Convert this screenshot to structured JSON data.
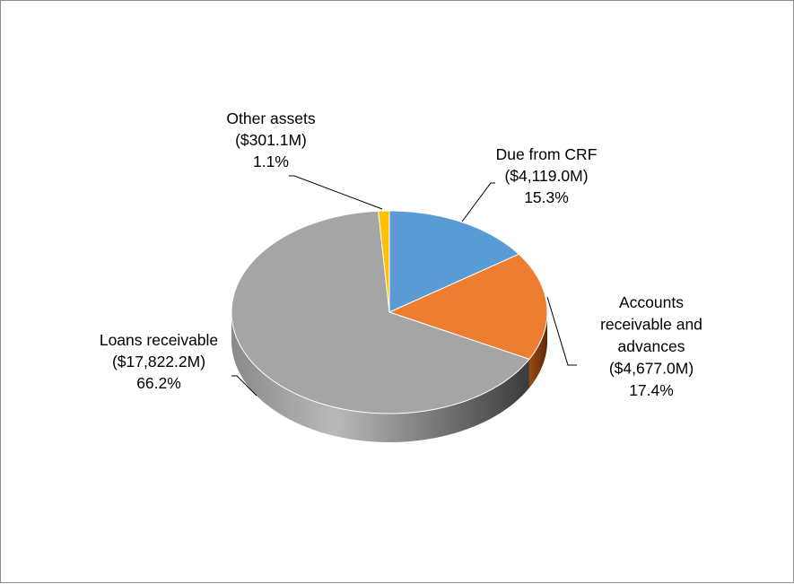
{
  "chart_data": {
    "type": "pie",
    "style": "3d",
    "title": "",
    "unit": "$M",
    "slices": [
      {
        "label": "Due from CRF",
        "value": 4119.0,
        "percent": 15.3,
        "color": "#5B9BD5",
        "side_color": "#2E5F8A",
        "label_lines": [
          "Due from CRF",
          "($4,119.0M)",
          "15.3%"
        ]
      },
      {
        "label": "Accounts receivable and advances",
        "value": 4677.0,
        "percent": 17.4,
        "color": "#ED7D31",
        "side_color": "#7A3A0E",
        "label_lines": [
          "Accounts",
          "receivable and",
          "advances",
          "($4,677.0M)",
          "17.4%"
        ]
      },
      {
        "label": "Loans receivable",
        "value": 17822.2,
        "percent": 66.2,
        "color": "#A5A5A5",
        "side_color": "#4A4A4A",
        "label_lines": [
          "Loans receivable",
          "($17,822.2M)",
          "66.2%"
        ]
      },
      {
        "label": "Other assets",
        "value": 301.1,
        "percent": 1.1,
        "color": "#FFC000",
        "side_color": "#8A6800",
        "label_lines": [
          "Other assets",
          "($301.1M)",
          "1.1%"
        ]
      }
    ],
    "legend": "none",
    "data_labels": "outside with leader lines"
  }
}
